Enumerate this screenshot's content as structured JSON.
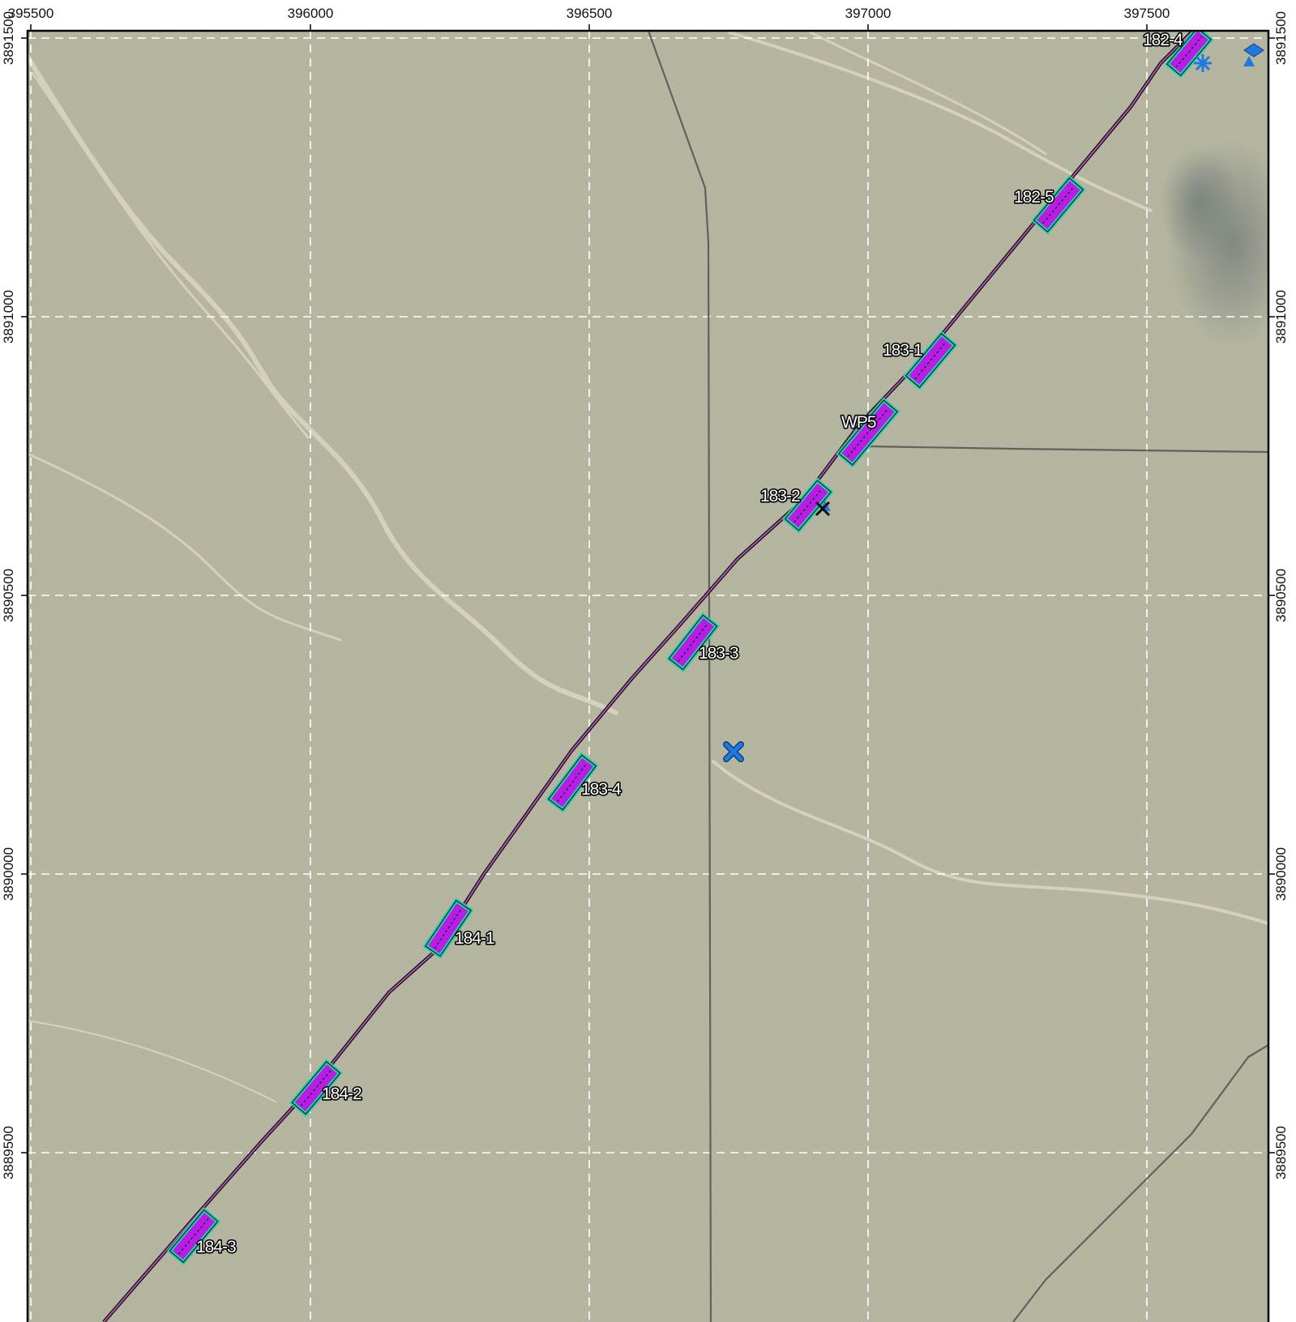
{
  "map": {
    "easting_ticks": [
      "395500",
      "396000",
      "396500",
      "397000",
      "397500"
    ],
    "northing_ticks": [
      "3891500",
      "3891000",
      "3890500",
      "3890000",
      "3889500"
    ],
    "sites": [
      {
        "id": "182-4"
      },
      {
        "id": "182-5"
      },
      {
        "id": "183-1"
      },
      {
        "id": "WP5"
      },
      {
        "id": "183-2"
      },
      {
        "id": "183-3"
      },
      {
        "id": "183-4"
      },
      {
        "id": "184-1"
      },
      {
        "id": "184-2"
      },
      {
        "id": "184-3"
      }
    ],
    "colors": {
      "imagery_base": "#b9b8a1",
      "wash": "#dcd8c4",
      "pad_fill": "#b81de6",
      "pad_outline": "#1fd2b4",
      "line": "#1c1c1c",
      "road": "#5f625d",
      "grid": "#ffffff",
      "marker_blue": "#1f7ae0",
      "frame": "#000000"
    },
    "markers": [
      {
        "type": "blue-cross-icon"
      },
      {
        "type": "black-cross-icon"
      },
      {
        "type": "blue-asterisk-icon"
      },
      {
        "type": "blue-diamond-icon"
      },
      {
        "type": "blue-triangle-icon"
      }
    ]
  }
}
